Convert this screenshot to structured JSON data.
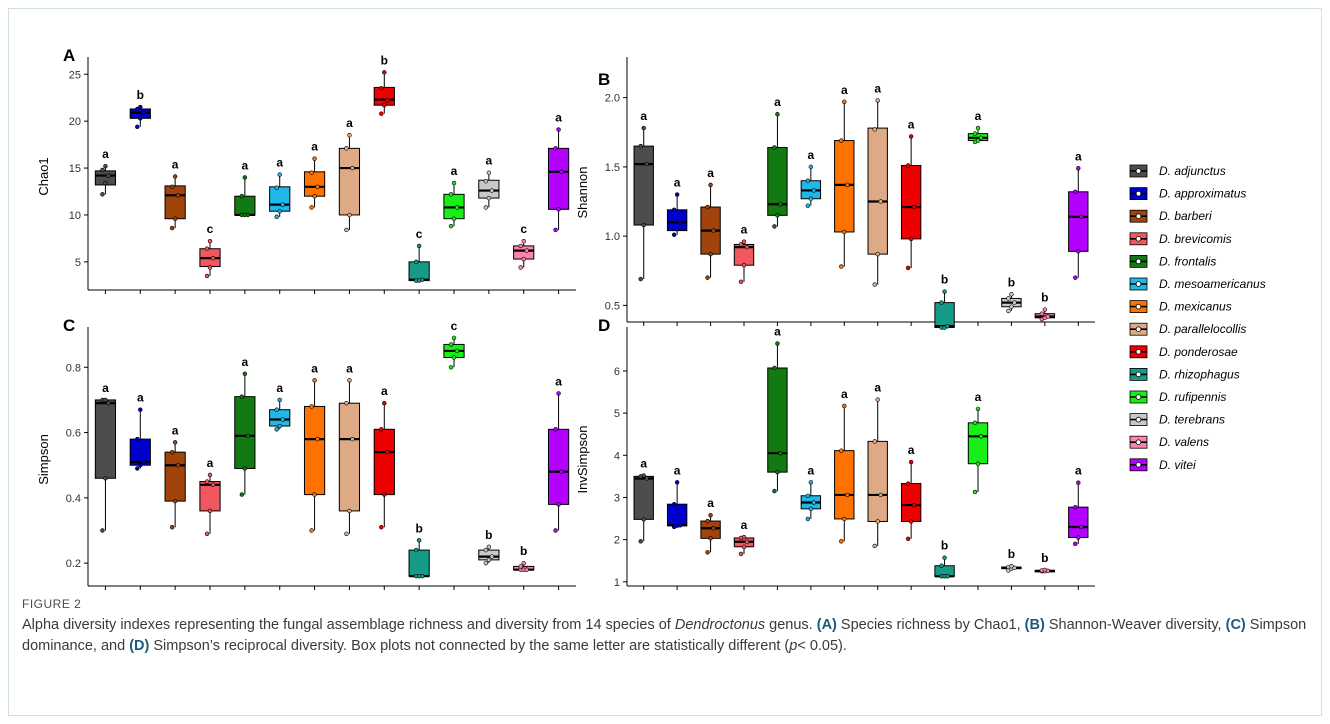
{
  "figure": {
    "label": "FIGURE 2",
    "caption": {
      "t1": "Alpha diversity indexes representing the fungal assemblage richness and diversity from 14 species of ",
      "genus": "Dendroctonus",
      "t2": " genus. ",
      "a_tag": "(A)",
      "a_text": " Species richness by Chao1, ",
      "b_tag": "(B)",
      "b_text": " Shannon-Weaver diversity, ",
      "c_tag": "(C)",
      "c_text": " Simpson dominance, and ",
      "d_tag": "(D)",
      "d_text": " Simpson’s reciprocal diversity. Box plots not connected by the same letter are statistically different (",
      "p_sym": "p",
      "p_text": "< 0.05)."
    }
  },
  "legend": {
    "position": "right",
    "entries": [
      {
        "name": "D. adjunctus",
        "color": "#4d4d4d"
      },
      {
        "name": "D. approximatus",
        "color": "#0000cd"
      },
      {
        "name": "D. barberi",
        "color": "#a0440c"
      },
      {
        "name": "D. brevicomis",
        "color": "#f0575f"
      },
      {
        "name": "D. frontalis",
        "color": "#137a13"
      },
      {
        "name": "D. mesoamericanus",
        "color": "#1fb8e8"
      },
      {
        "name": "D. mexicanus",
        "color": "#ff7200"
      },
      {
        "name": "D. parallelocollis",
        "color": "#deaa86"
      },
      {
        "name": "D. ponderosae",
        "color": "#ee0000"
      },
      {
        "name": "D. rhizophagus",
        "color": "#169b88"
      },
      {
        "name": "D. rufipennis",
        "color": "#18ee18"
      },
      {
        "name": "D. terebrans",
        "color": "#c8c8c8"
      },
      {
        "name": "D. valens",
        "color": "#ff82ab"
      },
      {
        "name": "D. vitei",
        "color": "#b300ff"
      }
    ]
  },
  "chart_data": [
    {
      "panel": "A",
      "type": "box",
      "ylabel": "Chao1",
      "ylim": [
        2,
        26.2
      ],
      "yticks": [
        5,
        10,
        15,
        20,
        25
      ],
      "boxes": [
        {
          "q1": 13.2,
          "median": 14.2,
          "q3": 14.7,
          "lo": 12.2,
          "hi": 15.2,
          "letter": "a",
          "points": [
            12.2,
            13.4,
            14.2,
            14.8,
            15.2
          ]
        },
        {
          "q1": 20.3,
          "median": 20.9,
          "q3": 21.3,
          "lo": 19.4,
          "hi": 21.5,
          "letter": "b",
          "points": [
            19.4,
            20.3,
            20.9,
            21.3,
            21.5
          ]
        },
        {
          "q1": 9.6,
          "median": 12.1,
          "q3": 13.1,
          "lo": 8.6,
          "hi": 14.1,
          "letter": "a",
          "points": [
            8.6,
            9.6,
            12.1,
            13.0,
            14.1
          ]
        },
        {
          "q1": 4.5,
          "median": 5.4,
          "q3": 6.4,
          "lo": 3.5,
          "hi": 7.2,
          "letter": "c",
          "points": [
            3.5,
            4.4,
            5.4,
            6.4,
            7.2
          ]
        },
        {
          "q1": 10.0,
          "median": 10.0,
          "q3": 12.0,
          "lo": 10.0,
          "hi": 14.0,
          "letter": "a",
          "points": [
            10.0,
            10.0,
            10.0,
            12.0,
            14.0
          ]
        },
        {
          "q1": 10.4,
          "median": 11.1,
          "q3": 13.0,
          "lo": 9.8,
          "hi": 14.3,
          "letter": "a",
          "points": [
            9.8,
            10.4,
            11.1,
            12.9,
            14.3
          ]
        },
        {
          "q1": 12.0,
          "median": 13.0,
          "q3": 14.6,
          "lo": 10.8,
          "hi": 16.0,
          "letter": "a",
          "points": [
            10.8,
            12.0,
            13.0,
            14.5,
            16.0
          ]
        },
        {
          "q1": 10.0,
          "median": 15.0,
          "q3": 17.1,
          "lo": 8.4,
          "hi": 18.5,
          "letter": "a",
          "points": [
            8.4,
            10.0,
            15.0,
            17.1,
            18.5
          ]
        },
        {
          "q1": 21.7,
          "median": 22.3,
          "q3": 23.6,
          "lo": 20.8,
          "hi": 25.2,
          "letter": "b",
          "points": [
            20.8,
            21.7,
            22.2,
            23.5,
            25.2
          ]
        },
        {
          "q1": 3.0,
          "median": 3.1,
          "q3": 5.0,
          "lo": 3.0,
          "hi": 6.7,
          "letter": "c",
          "points": [
            3.0,
            3.0,
            3.1,
            5.0,
            6.7
          ]
        },
        {
          "q1": 9.6,
          "median": 10.8,
          "q3": 12.2,
          "lo": 8.8,
          "hi": 13.4,
          "letter": "a",
          "points": [
            8.8,
            9.6,
            10.8,
            12.2,
            13.4
          ]
        },
        {
          "q1": 11.8,
          "median": 12.6,
          "q3": 13.7,
          "lo": 10.8,
          "hi": 14.5,
          "letter": "a",
          "points": [
            10.8,
            11.8,
            12.6,
            13.6,
            14.5
          ]
        },
        {
          "q1": 5.3,
          "median": 6.2,
          "q3": 6.7,
          "lo": 4.4,
          "hi": 7.2,
          "letter": "c",
          "points": [
            4.4,
            5.3,
            6.2,
            6.7,
            7.2
          ]
        },
        {
          "q1": 10.6,
          "median": 14.6,
          "q3": 17.1,
          "lo": 8.4,
          "hi": 19.1,
          "letter": "a",
          "points": [
            8.4,
            10.6,
            14.6,
            17.1,
            19.1
          ]
        }
      ]
    },
    {
      "panel": "B",
      "type": "box",
      "ylabel": "Shannon",
      "ylim": [
        0.38,
        2.25
      ],
      "yticks": [
        0.5,
        1.0,
        1.5,
        2.0
      ],
      "boxes": [
        {
          "q1": 1.08,
          "median": 1.52,
          "q3": 1.65,
          "lo": 0.69,
          "hi": 1.78,
          "letter": "a",
          "points": [
            0.69,
            1.08,
            1.52,
            1.65,
            1.78
          ]
        },
        {
          "q1": 1.04,
          "median": 1.1,
          "q3": 1.19,
          "lo": 1.01,
          "hi": 1.3,
          "letter": "a",
          "points": [
            1.01,
            1.05,
            1.1,
            1.19,
            1.3
          ]
        },
        {
          "q1": 0.87,
          "median": 1.04,
          "q3": 1.21,
          "lo": 0.7,
          "hi": 1.37,
          "letter": "a",
          "points": [
            0.7,
            0.87,
            1.04,
            1.21,
            1.37
          ]
        },
        {
          "q1": 0.79,
          "median": 0.92,
          "q3": 0.94,
          "lo": 0.67,
          "hi": 0.96,
          "letter": "a",
          "points": [
            0.67,
            0.79,
            0.92,
            0.94,
            0.96
          ]
        },
        {
          "q1": 1.15,
          "median": 1.23,
          "q3": 1.64,
          "lo": 1.07,
          "hi": 1.88,
          "letter": "a",
          "points": [
            1.07,
            1.15,
            1.23,
            1.64,
            1.88
          ]
        },
        {
          "q1": 1.27,
          "median": 1.33,
          "q3": 1.4,
          "lo": 1.22,
          "hi": 1.5,
          "letter": "a",
          "points": [
            1.22,
            1.27,
            1.33,
            1.4,
            1.5
          ]
        },
        {
          "q1": 1.03,
          "median": 1.37,
          "q3": 1.69,
          "lo": 0.78,
          "hi": 1.97,
          "letter": "a",
          "points": [
            0.78,
            1.03,
            1.37,
            1.69,
            1.97
          ]
        },
        {
          "q1": 0.87,
          "median": 1.25,
          "q3": 1.78,
          "lo": 0.65,
          "hi": 1.98,
          "letter": "a",
          "points": [
            0.65,
            0.87,
            1.25,
            1.77,
            1.98
          ]
        },
        {
          "q1": 0.98,
          "median": 1.21,
          "q3": 1.51,
          "lo": 0.77,
          "hi": 1.72,
          "letter": "a",
          "points": [
            0.77,
            0.98,
            1.21,
            1.51,
            1.72
          ]
        },
        {
          "q1": 0.34,
          "median": 0.35,
          "q3": 0.52,
          "lo": 0.34,
          "hi": 0.6,
          "letter": "b",
          "points": [
            0.34,
            0.34,
            0.35,
            0.52,
            0.6
          ]
        },
        {
          "q1": 1.69,
          "median": 1.71,
          "q3": 1.74,
          "lo": 1.68,
          "hi": 1.78,
          "letter": "a",
          "points": [
            1.68,
            1.69,
            1.71,
            1.74,
            1.78
          ]
        },
        {
          "q1": 0.49,
          "median": 0.52,
          "q3": 0.55,
          "lo": 0.46,
          "hi": 0.58,
          "letter": "b",
          "points": [
            0.46,
            0.49,
            0.52,
            0.55,
            0.58
          ]
        },
        {
          "q1": 0.41,
          "median": 0.42,
          "q3": 0.44,
          "lo": 0.4,
          "hi": 0.47,
          "letter": "b",
          "points": [
            0.4,
            0.41,
            0.42,
            0.44,
            0.47
          ]
        },
        {
          "q1": 0.89,
          "median": 1.14,
          "q3": 1.32,
          "lo": 0.7,
          "hi": 1.49,
          "letter": "a",
          "points": [
            0.7,
            0.89,
            1.14,
            1.32,
            1.49
          ]
        }
      ]
    },
    {
      "panel": "C",
      "type": "box",
      "ylabel": "Simpson",
      "ylim": [
        0.13,
        0.905
      ],
      "yticks": [
        0.2,
        0.4,
        0.6,
        0.8
      ],
      "boxes": [
        {
          "q1": 0.46,
          "median": 0.69,
          "q3": 0.7,
          "lo": 0.3,
          "hi": 0.7,
          "letter": "a",
          "points": [
            0.3,
            0.46,
            0.69,
            0.7,
            0.7
          ]
        },
        {
          "q1": 0.5,
          "median": 0.51,
          "q3": 0.58,
          "lo": 0.49,
          "hi": 0.67,
          "letter": "a",
          "points": [
            0.49,
            0.5,
            0.51,
            0.58,
            0.67
          ]
        },
        {
          "q1": 0.39,
          "median": 0.5,
          "q3": 0.54,
          "lo": 0.31,
          "hi": 0.57,
          "letter": "a",
          "points": [
            0.31,
            0.39,
            0.5,
            0.54,
            0.57
          ]
        },
        {
          "q1": 0.36,
          "median": 0.44,
          "q3": 0.45,
          "lo": 0.29,
          "hi": 0.47,
          "letter": "a",
          "points": [
            0.29,
            0.36,
            0.44,
            0.45,
            0.47
          ]
        },
        {
          "q1": 0.49,
          "median": 0.59,
          "q3": 0.71,
          "lo": 0.41,
          "hi": 0.78,
          "letter": "a",
          "points": [
            0.41,
            0.49,
            0.59,
            0.71,
            0.78
          ]
        },
        {
          "q1": 0.62,
          "median": 0.64,
          "q3": 0.67,
          "lo": 0.61,
          "hi": 0.7,
          "letter": "a",
          "points": [
            0.61,
            0.62,
            0.64,
            0.67,
            0.7
          ]
        },
        {
          "q1": 0.41,
          "median": 0.58,
          "q3": 0.68,
          "lo": 0.3,
          "hi": 0.76,
          "letter": "a",
          "points": [
            0.3,
            0.41,
            0.58,
            0.68,
            0.76
          ]
        },
        {
          "q1": 0.36,
          "median": 0.58,
          "q3": 0.69,
          "lo": 0.29,
          "hi": 0.76,
          "letter": "a",
          "points": [
            0.29,
            0.36,
            0.58,
            0.69,
            0.76
          ]
        },
        {
          "q1": 0.41,
          "median": 0.54,
          "q3": 0.61,
          "lo": 0.31,
          "hi": 0.69,
          "letter": "a",
          "points": [
            0.31,
            0.41,
            0.54,
            0.61,
            0.69
          ]
        },
        {
          "q1": 0.16,
          "median": 0.16,
          "q3": 0.24,
          "lo": 0.16,
          "hi": 0.27,
          "letter": "b",
          "points": [
            0.16,
            0.16,
            0.16,
            0.24,
            0.27
          ]
        },
        {
          "q1": 0.83,
          "median": 0.85,
          "q3": 0.87,
          "lo": 0.8,
          "hi": 0.89,
          "letter": "c",
          "points": [
            0.8,
            0.83,
            0.85,
            0.87,
            0.89
          ]
        },
        {
          "q1": 0.21,
          "median": 0.22,
          "q3": 0.24,
          "lo": 0.2,
          "hi": 0.25,
          "letter": "b",
          "points": [
            0.2,
            0.21,
            0.22,
            0.24,
            0.25
          ]
        },
        {
          "q1": 0.18,
          "median": 0.18,
          "q3": 0.19,
          "lo": 0.18,
          "hi": 0.2,
          "letter": "b",
          "points": [
            0.18,
            0.18,
            0.18,
            0.19,
            0.2
          ]
        },
        {
          "q1": 0.38,
          "median": 0.48,
          "q3": 0.61,
          "lo": 0.3,
          "hi": 0.72,
          "letter": "a",
          "points": [
            0.3,
            0.38,
            0.48,
            0.61,
            0.72
          ]
        }
      ]
    },
    {
      "panel": "D",
      "type": "box",
      "ylabel": "InvSimpson",
      "ylim": [
        0.9,
        6.9
      ],
      "yticks": [
        1,
        2,
        3,
        4,
        5,
        6
      ],
      "boxes": [
        {
          "q1": 2.48,
          "median": 3.45,
          "q3": 3.5,
          "lo": 1.96,
          "hi": 3.52,
          "letter": "a",
          "points": [
            1.96,
            2.48,
            3.45,
            3.5,
            3.52
          ]
        },
        {
          "q1": 2.33,
          "median": 2.34,
          "q3": 2.84,
          "lo": 2.3,
          "hi": 3.36,
          "letter": "a",
          "points": [
            2.3,
            2.33,
            2.34,
            2.84,
            3.36
          ]
        },
        {
          "q1": 2.03,
          "median": 2.27,
          "q3": 2.44,
          "lo": 1.7,
          "hi": 2.58,
          "letter": "a",
          "points": [
            1.7,
            2.03,
            2.27,
            2.44,
            2.58
          ]
        },
        {
          "q1": 1.83,
          "median": 1.95,
          "q3": 2.04,
          "lo": 1.66,
          "hi": 2.06,
          "letter": "a",
          "points": [
            1.66,
            1.83,
            1.95,
            2.04,
            2.06
          ]
        },
        {
          "q1": 3.6,
          "median": 4.05,
          "q3": 6.07,
          "lo": 3.15,
          "hi": 6.65,
          "letter": "a",
          "points": [
            3.15,
            3.6,
            4.05,
            6.07,
            6.65
          ]
        },
        {
          "q1": 2.73,
          "median": 2.88,
          "q3": 3.04,
          "lo": 2.49,
          "hi": 3.36,
          "letter": "a",
          "points": [
            2.49,
            2.73,
            2.88,
            3.04,
            3.36
          ]
        },
        {
          "q1": 2.49,
          "median": 3.06,
          "q3": 4.11,
          "lo": 1.96,
          "hi": 5.17,
          "letter": "a",
          "points": [
            1.96,
            2.49,
            3.06,
            4.11,
            5.17
          ]
        },
        {
          "q1": 2.43,
          "median": 3.06,
          "q3": 4.33,
          "lo": 1.85,
          "hi": 5.32,
          "letter": "a",
          "points": [
            1.85,
            2.43,
            3.06,
            4.33,
            5.32
          ]
        },
        {
          "q1": 2.43,
          "median": 2.82,
          "q3": 3.33,
          "lo": 2.02,
          "hi": 3.84,
          "letter": "a",
          "points": [
            2.02,
            2.43,
            2.82,
            3.33,
            3.84
          ]
        },
        {
          "q1": 1.13,
          "median": 1.13,
          "q3": 1.38,
          "lo": 1.13,
          "hi": 1.57,
          "letter": "b",
          "points": [
            1.13,
            1.13,
            1.13,
            1.38,
            1.57
          ]
        },
        {
          "q1": 3.8,
          "median": 4.45,
          "q3": 4.77,
          "lo": 3.13,
          "hi": 5.1,
          "letter": "a",
          "points": [
            3.13,
            3.8,
            4.45,
            4.77,
            5.1
          ]
        },
        {
          "q1": 1.31,
          "median": 1.33,
          "q3": 1.35,
          "lo": 1.27,
          "hi": 1.37,
          "letter": "b",
          "points": [
            1.27,
            1.31,
            1.33,
            1.35,
            1.37
          ]
        },
        {
          "q1": 1.25,
          "median": 1.26,
          "q3": 1.27,
          "lo": 1.25,
          "hi": 1.28,
          "letter": "b",
          "points": [
            1.25,
            1.25,
            1.26,
            1.27,
            1.28
          ]
        },
        {
          "q1": 2.05,
          "median": 2.3,
          "q3": 2.77,
          "lo": 1.9,
          "hi": 3.35,
          "letter": "a",
          "points": [
            1.9,
            2.05,
            2.3,
            2.77,
            3.35
          ]
        }
      ]
    }
  ]
}
